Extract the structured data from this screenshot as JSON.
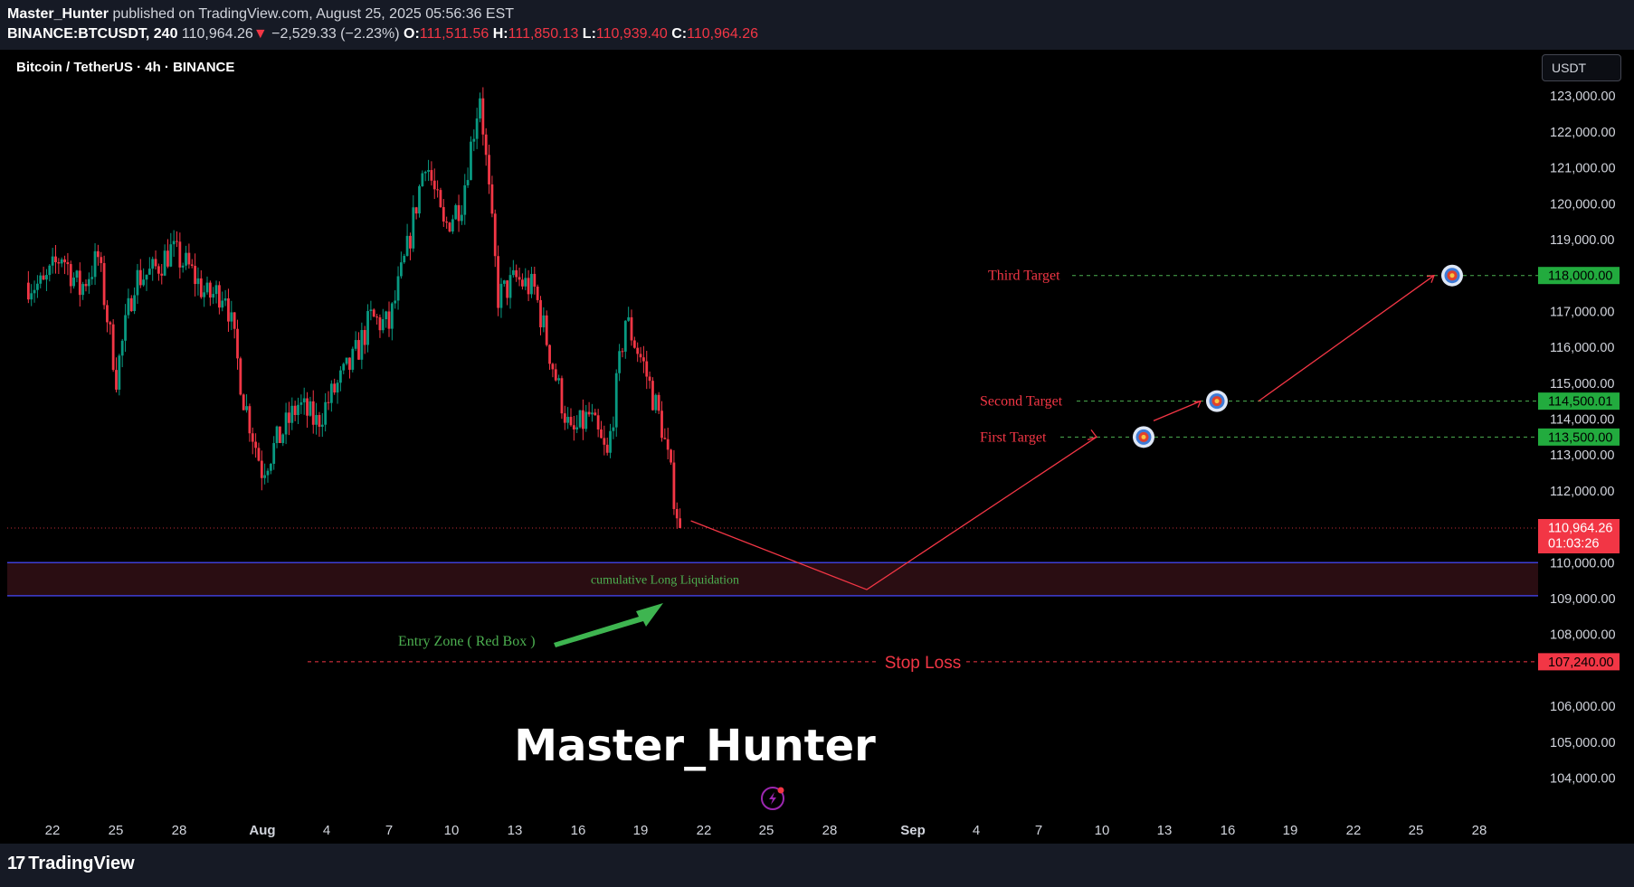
{
  "header": {
    "author": "Master_Hunter",
    "published_text": " published on TradingView.com, August 25, 2025 05:56:36 EST",
    "symbol": "BINANCE:BTCUSDT, 240",
    "last": "110,964.26",
    "change": "−2,529.33 (−2.23%)",
    "open_label": "O:",
    "open": "111,511.56",
    "high_label": "H:",
    "high": "111,850.13",
    "low_label": "L:",
    "low": "110,939.40",
    "close_label": "C:",
    "close": "110,964.26"
  },
  "chart_title": "Bitcoin / TetherUS · 4h · BINANCE",
  "currency": "USDT",
  "footer": {
    "logo_mark": "17",
    "logo_text": "TradingView"
  },
  "watermark": "Master_Hunter",
  "colors": {
    "up": "#089981",
    "down": "#f23645",
    "background": "#000000",
    "panel": "#161a25",
    "target_line": "#4caf50",
    "stop": "#f23645",
    "zone": "#2a0d12",
    "zone_border": "#3f3fd6"
  },
  "chart_data": {
    "type": "candlestick",
    "instrument": "BINANCE:BTCUSDT",
    "timeframe": "4h",
    "ylim": [
      103200,
      124200
    ],
    "y_ticks": [
      {
        "value": 123000,
        "label": "123,000.00"
      },
      {
        "value": 122000,
        "label": "122,000.00"
      },
      {
        "value": 121000,
        "label": "121,000.00"
      },
      {
        "value": 120000,
        "label": "120,000.00"
      },
      {
        "value": 119000,
        "label": "119,000.00"
      },
      {
        "value": 117000,
        "label": "117,000.00"
      },
      {
        "value": 116000,
        "label": "116,000.00"
      },
      {
        "value": 115000,
        "label": "115,000.00"
      },
      {
        "value": 114000,
        "label": "114,000.00"
      },
      {
        "value": 113000,
        "label": "113,000.00"
      },
      {
        "value": 112000,
        "label": "112,000.00"
      },
      {
        "value": 110000,
        "label": "110,000.00"
      },
      {
        "value": 109000,
        "label": "109,000.00"
      },
      {
        "value": 108000,
        "label": "108,000.00"
      },
      {
        "value": 106000,
        "label": "106,000.00"
      },
      {
        "value": 105000,
        "label": "105,000.00"
      },
      {
        "value": 104000,
        "label": "104,000.00"
      }
    ],
    "x_ticks": [
      {
        "label": "22",
        "bold": false
      },
      {
        "label": "25",
        "bold": false
      },
      {
        "label": "28",
        "bold": false
      },
      {
        "label": "Aug",
        "bold": true
      },
      {
        "label": "4",
        "bold": false
      },
      {
        "label": "7",
        "bold": false
      },
      {
        "label": "10",
        "bold": false
      },
      {
        "label": "13",
        "bold": false
      },
      {
        "label": "16",
        "bold": false
      },
      {
        "label": "19",
        "bold": false
      },
      {
        "label": "22",
        "bold": false
      },
      {
        "label": "25",
        "bold": false
      },
      {
        "label": "28",
        "bold": false
      },
      {
        "label": "Sep",
        "bold": true
      },
      {
        "label": "4",
        "bold": false
      },
      {
        "label": "7",
        "bold": false
      },
      {
        "label": "10",
        "bold": false
      },
      {
        "label": "13",
        "bold": false
      },
      {
        "label": "16",
        "bold": false
      },
      {
        "label": "19",
        "bold": false
      },
      {
        "label": "22",
        "bold": false
      },
      {
        "label": "25",
        "bold": false
      },
      {
        "label": "28",
        "bold": false
      }
    ],
    "price_path": [
      [
        "Jul 20",
        117800
      ],
      [
        "Jul 21",
        117700
      ],
      [
        "Jul 22",
        118600
      ],
      [
        "Jul 23",
        117600
      ],
      [
        "Jul 24",
        118500
      ],
      [
        "Jul 25",
        115200
      ],
      [
        "Jul 26",
        117900
      ],
      [
        "Jul 27",
        118100
      ],
      [
        "Jul 28",
        118700
      ],
      [
        "Jul 29",
        118200
      ],
      [
        "Jul 30",
        117400
      ],
      [
        "Jul 31",
        117600
      ],
      [
        "Aug 1",
        114600
      ],
      [
        "Aug 2",
        112600
      ],
      [
        "Aug 3",
        113500
      ],
      [
        "Aug 4",
        114400
      ],
      [
        "Aug 5",
        113900
      ],
      [
        "Aug 6",
        114800
      ],
      [
        "Aug 7",
        115600
      ],
      [
        "Aug 8",
        116800
      ],
      [
        "Aug 9",
        116600
      ],
      [
        "Aug 10",
        118700
      ],
      [
        "Aug 11",
        121300
      ],
      [
        "Aug 12",
        119300
      ],
      [
        "Aug 13",
        120100
      ],
      [
        "Aug 14",
        123100
      ],
      [
        "Aug 15",
        117400
      ],
      [
        "Aug 16",
        117900
      ],
      [
        "Aug 17",
        117600
      ],
      [
        "Aug 18",
        115500
      ],
      [
        "Aug 19",
        113500
      ],
      [
        "Aug 20",
        114100
      ],
      [
        "Aug 21",
        112900
      ],
      [
        "Aug 22",
        116800
      ],
      [
        "Aug 23",
        115500
      ],
      [
        "Aug 24",
        113800
      ],
      [
        "Aug 25",
        110964
      ]
    ],
    "last_price": {
      "value": 110964.26,
      "label": "110,964.26",
      "countdown": "01:03:26"
    },
    "annotations": {
      "third_target": {
        "label": "Third Target",
        "value": 118000,
        "price_label": "118,000.00"
      },
      "second_target": {
        "label": "Second Target",
        "value": 114500,
        "price_label": "114,500.01"
      },
      "first_target": {
        "label": "First Target",
        "value": 113500,
        "price_label": "113,500.00"
      },
      "stop_loss": {
        "label": "Stop Loss",
        "value": 107240,
        "price_label": "107,240.00"
      },
      "zone": {
        "label": "cumulative Long Liquidation",
        "top": 110000,
        "bottom": 109080
      },
      "entry_label": "Entry Zone ( Red Box )",
      "projected_low": 109250
    }
  }
}
